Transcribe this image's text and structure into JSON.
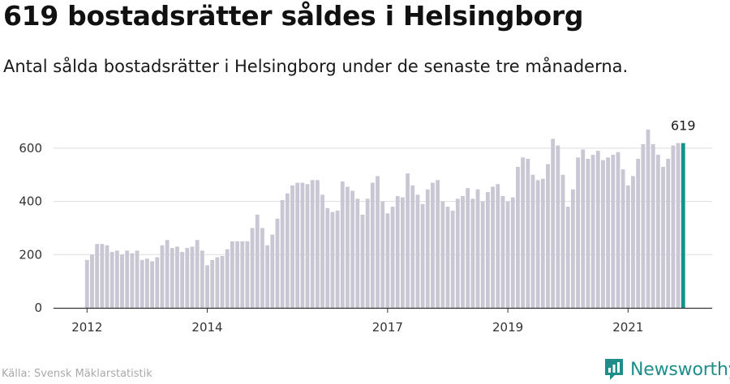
{
  "header": {
    "title": "619 bostadsrätter såldes i Helsingborg",
    "subtitle": "Antal sålda bostadsrätter i Helsingborg under de senaste tre månaderna."
  },
  "footer": {
    "source": "Källa: Svensk Mäklarstatistik",
    "brand": "Newsworthy"
  },
  "colors": {
    "bar": "#c8c7d3",
    "highlight": "#13928b",
    "grid": "#dddddd",
    "axis": "#333333"
  },
  "chart_data": {
    "type": "bar",
    "title": "619 bostadsrätter såldes i Helsingborg",
    "subtitle": "Antal sålda bostadsrätter i Helsingborg under de senaste tre månaderna.",
    "xlabel": "",
    "ylabel": "",
    "ylim": [
      0,
      700
    ],
    "yticks": [
      0,
      200,
      400,
      600
    ],
    "x_tick_labels": [
      {
        "label": "2012",
        "index": 0
      },
      {
        "label": "2014",
        "index": 24
      },
      {
        "label": "2017",
        "index": 60
      },
      {
        "label": "2019",
        "index": 84
      },
      {
        "label": "2021",
        "index": 108
      }
    ],
    "grid": true,
    "annotation": {
      "text": "619",
      "index": 119
    },
    "highlight_index": 119,
    "x": [
      "2012-01",
      "2012-02",
      "2012-03",
      "2012-04",
      "2012-05",
      "2012-06",
      "2012-07",
      "2012-08",
      "2012-09",
      "2012-10",
      "2012-11",
      "2012-12",
      "2013-01",
      "2013-02",
      "2013-03",
      "2013-04",
      "2013-05",
      "2013-06",
      "2013-07",
      "2013-08",
      "2013-09",
      "2013-10",
      "2013-11",
      "2013-12",
      "2014-01",
      "2014-02",
      "2014-03",
      "2014-04",
      "2014-05",
      "2014-06",
      "2014-07",
      "2014-08",
      "2014-09",
      "2014-10",
      "2014-11",
      "2014-12",
      "2015-01",
      "2015-02",
      "2015-03",
      "2015-04",
      "2015-05",
      "2015-06",
      "2015-07",
      "2015-08",
      "2015-09",
      "2015-10",
      "2015-11",
      "2015-12",
      "2016-01",
      "2016-02",
      "2016-03",
      "2016-04",
      "2016-05",
      "2016-06",
      "2016-07",
      "2016-08",
      "2016-09",
      "2016-10",
      "2016-11",
      "2016-12",
      "2017-01",
      "2017-02",
      "2017-03",
      "2017-04",
      "2017-05",
      "2017-06",
      "2017-07",
      "2017-08",
      "2017-09",
      "2017-10",
      "2017-11",
      "2017-12",
      "2018-01",
      "2018-02",
      "2018-03",
      "2018-04",
      "2018-05",
      "2018-06",
      "2018-07",
      "2018-08",
      "2018-09",
      "2018-10",
      "2018-11",
      "2018-12",
      "2019-01",
      "2019-02",
      "2019-03",
      "2019-04",
      "2019-05",
      "2019-06",
      "2019-07",
      "2019-08",
      "2019-09",
      "2019-10",
      "2019-11",
      "2019-12",
      "2020-01",
      "2020-02",
      "2020-03",
      "2020-04",
      "2020-05",
      "2020-06",
      "2020-07",
      "2020-08",
      "2020-09",
      "2020-10",
      "2020-11",
      "2020-12",
      "2021-01",
      "2021-02",
      "2021-03",
      "2021-04",
      "2021-05",
      "2021-06",
      "2021-07",
      "2021-08",
      "2021-09",
      "2021-10",
      "2021-11",
      "2021-12"
    ],
    "values": [
      180,
      200,
      240,
      240,
      235,
      210,
      215,
      200,
      215,
      205,
      215,
      180,
      185,
      175,
      190,
      235,
      255,
      225,
      230,
      210,
      225,
      230,
      255,
      215,
      160,
      180,
      190,
      195,
      220,
      250,
      250,
      250,
      250,
      300,
      350,
      300,
      235,
      275,
      335,
      405,
      430,
      460,
      470,
      470,
      465,
      480,
      480,
      425,
      375,
      360,
      365,
      475,
      455,
      440,
      410,
      350,
      410,
      470,
      495,
      400,
      355,
      380,
      420,
      415,
      505,
      460,
      425,
      390,
      445,
      470,
      480,
      400,
      380,
      365,
      410,
      420,
      450,
      410,
      445,
      400,
      435,
      455,
      465,
      420,
      400,
      415,
      530,
      565,
      560,
      500,
      480,
      485,
      540,
      635,
      610,
      500,
      380,
      445,
      565,
      595,
      560,
      575,
      590,
      555,
      565,
      575,
      585,
      520,
      460,
      495,
      560,
      615,
      670,
      615,
      575,
      530,
      560,
      610,
      619,
      619
    ]
  }
}
